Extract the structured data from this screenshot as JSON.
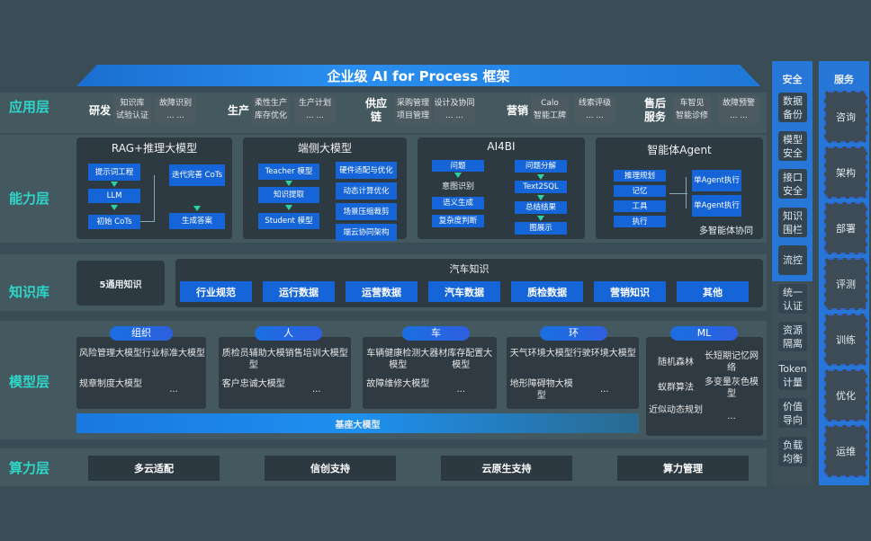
{
  "title": "企业级 AI for Process 框架",
  "layers": {
    "app": "应用层",
    "capability": "能力层",
    "knowledge": "知识库",
    "model": "模型层",
    "compute": "算力层"
  },
  "app_groups": [
    {
      "name": "研发",
      "items": [
        [
          "知识库",
          "试验认证"
        ],
        [
          "故障识别",
          "... ..."
        ]
      ]
    },
    {
      "name": "生产",
      "items": [
        [
          "柔性生产",
          "库存优化"
        ],
        [
          "生产计划",
          "... ..."
        ]
      ]
    },
    {
      "name": "供应链",
      "items": [
        [
          "采购管理",
          "项目管理"
        ],
        [
          "设计及协同",
          "... ..."
        ]
      ]
    },
    {
      "name": "营销",
      "items": [
        [
          "Calo",
          "智能工牌"
        ],
        [
          "线索评级",
          "... ..."
        ]
      ]
    },
    {
      "name": "售后服务",
      "items": [
        [
          "车智见",
          "智能诊修"
        ],
        [
          "故障预警",
          "... ..."
        ]
      ]
    }
  ],
  "capability": {
    "rag": {
      "title": "RAG+推理大模型",
      "prompt": "提示词工程",
      "llm": "LLM",
      "initial": "初始 CoTs",
      "iter": "迭代完善 CoTs",
      "gen": "生成答案"
    },
    "edge": {
      "title": "端侧大模型",
      "teacher": "Teacher 模型",
      "distill": "知识提取",
      "student": "Student 模型",
      "right": [
        "硬件适配与优化",
        "动态计算优化",
        "场景压缩裁剪",
        "端云协同架构"
      ]
    },
    "ai4bi": {
      "title": "AI4BI",
      "q": "问题",
      "intent": "意图识别",
      "sem": "语义生成",
      "complex": "复杂度判断",
      "decomp": "问题分解",
      "t2s": "Text2SQL",
      "summary": "总结结果",
      "display": "图展示"
    },
    "agent": {
      "title": "智能体Agent",
      "items": [
        "推理规划",
        "记忆",
        "工具",
        "执行"
      ],
      "exec1": "单Agent执行",
      "exec2": "单Agent执行",
      "multi": "多智能体协同"
    }
  },
  "knowledge": {
    "general": "5通用知识",
    "auto_title": "汽车知识",
    "items": [
      "行业规范",
      "运行数据",
      "运营数据",
      "汽车数据",
      "质检数据",
      "营销知识",
      "其他"
    ]
  },
  "model": {
    "groups": [
      {
        "tab": "组织",
        "items": [
          "风险管理大模型",
          "行业标准大模型",
          "规章制度大模型",
          "..."
        ]
      },
      {
        "tab": "人",
        "items": [
          "质检员辅助大模型",
          "销售培训大模型",
          "客户忠诚大模型",
          "..."
        ]
      },
      {
        "tab": "车",
        "items": [
          "车辆健康检测大模型",
          "器材库存配置大模型",
          "故障维修大模型",
          "..."
        ]
      },
      {
        "tab": "环",
        "items": [
          "天气环境大模型",
          "行驶环境大模型",
          "地形障碍物大模型",
          "..."
        ]
      }
    ],
    "ml": {
      "tab": "ML",
      "items": [
        "随机森林",
        "长短期记忆网络",
        "蚁群算法",
        "多变量灰色模型",
        "近似动态规划",
        "..."
      ]
    },
    "base": "基座大模型"
  },
  "compute": [
    "多云适配",
    "信创支持",
    "云原生支持",
    "算力管理"
  ],
  "security": {
    "title": "安全",
    "items": [
      "数据备份",
      "模型安全",
      "接口安全",
      "知识围栏",
      "流控",
      "统一认证",
      "资源隔离",
      "Token计量",
      "价值导向",
      "负载均衡"
    ]
  },
  "service": {
    "title": "服务",
    "items": [
      "咨询",
      "架构",
      "部署",
      "评测",
      "训练",
      "优化",
      "运维"
    ]
  }
}
